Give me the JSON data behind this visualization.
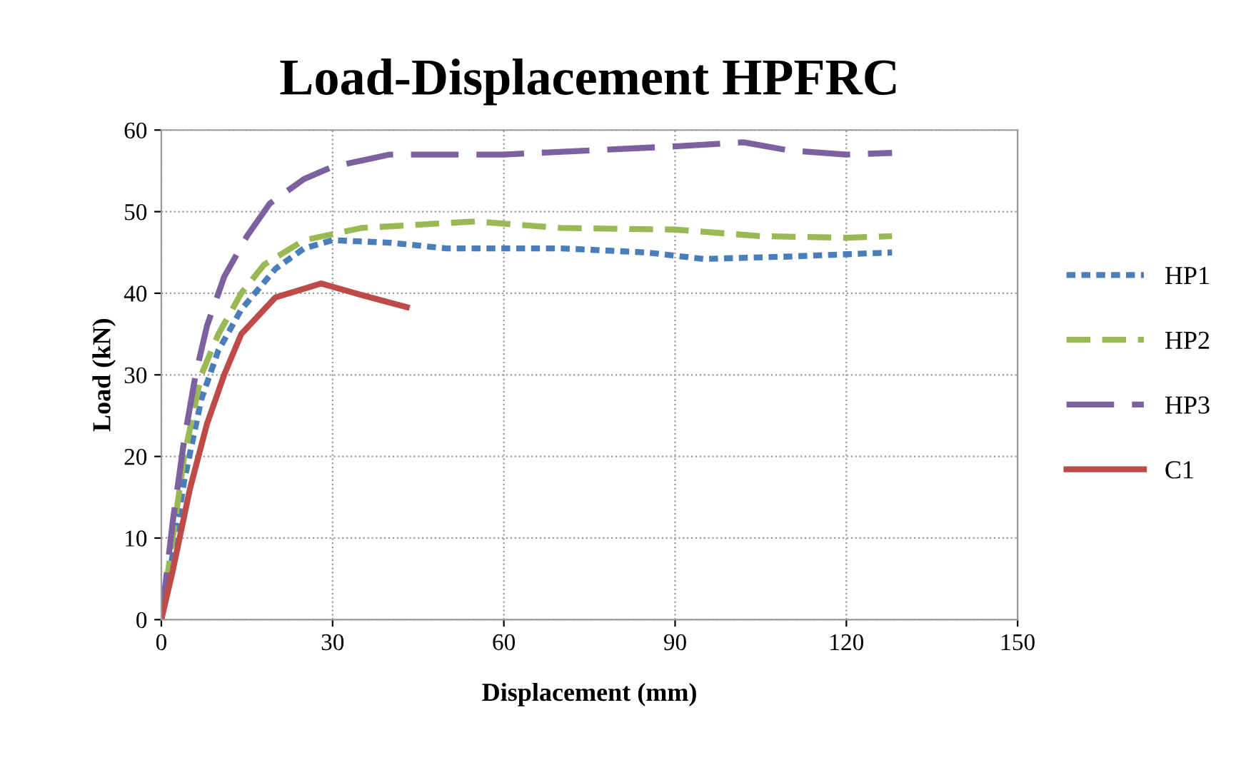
{
  "chart_data": {
    "type": "line",
    "title": "Load-Displacement HPFRC",
    "xlabel": "Displacement (mm)",
    "ylabel": "Load (kN)",
    "xlim": [
      0,
      150
    ],
    "xticks": [
      0,
      30,
      60,
      90,
      120,
      150
    ],
    "ylim": [
      0,
      60
    ],
    "yticks": [
      0,
      10,
      20,
      30,
      40,
      50,
      60
    ],
    "grid": true,
    "legend": "right",
    "series": [
      {
        "name": "HP1",
        "color": "#4a7ebb",
        "line_style": "dotted",
        "x": [
          0,
          2,
          4,
          7,
          10,
          14,
          20,
          25,
          30,
          40,
          50,
          70,
          85,
          95,
          110,
          128
        ],
        "values": [
          0,
          8,
          17,
          27,
          33,
          38,
          43,
          45.5,
          46.5,
          46.2,
          45.5,
          45.5,
          45,
          44.2,
          44.5,
          45
        ]
      },
      {
        "name": "HP2",
        "color": "#98b954",
        "line_style": "dashed",
        "x": [
          0,
          2,
          4,
          7,
          10,
          14,
          18,
          25,
          35,
          55,
          70,
          90,
          105,
          120,
          128
        ],
        "values": [
          0,
          10,
          20,
          30,
          35,
          40,
          43.5,
          46.5,
          48,
          48.8,
          48,
          47.8,
          47,
          46.8,
          47
        ]
      },
      {
        "name": "HP3",
        "color": "#7d60a0",
        "line_style": "longdash",
        "x": [
          0,
          2,
          4,
          6,
          8,
          11,
          15,
          19,
          25,
          30,
          40,
          50,
          60,
          75,
          90,
          102,
          110,
          120,
          128
        ],
        "values": [
          0,
          12,
          22,
          30,
          36,
          42,
          47,
          51,
          54,
          55.5,
          57,
          57,
          57,
          57.5,
          58,
          58.5,
          57.5,
          57,
          57.2
        ]
      },
      {
        "name": "C1",
        "color": "#be4b48",
        "line_style": "solid",
        "x": [
          0,
          2,
          5,
          8,
          11,
          14,
          20,
          28,
          35,
          43
        ],
        "values": [
          0,
          6,
          16,
          24,
          30,
          35,
          39.5,
          41.2,
          39.8,
          38.3
        ]
      }
    ]
  }
}
